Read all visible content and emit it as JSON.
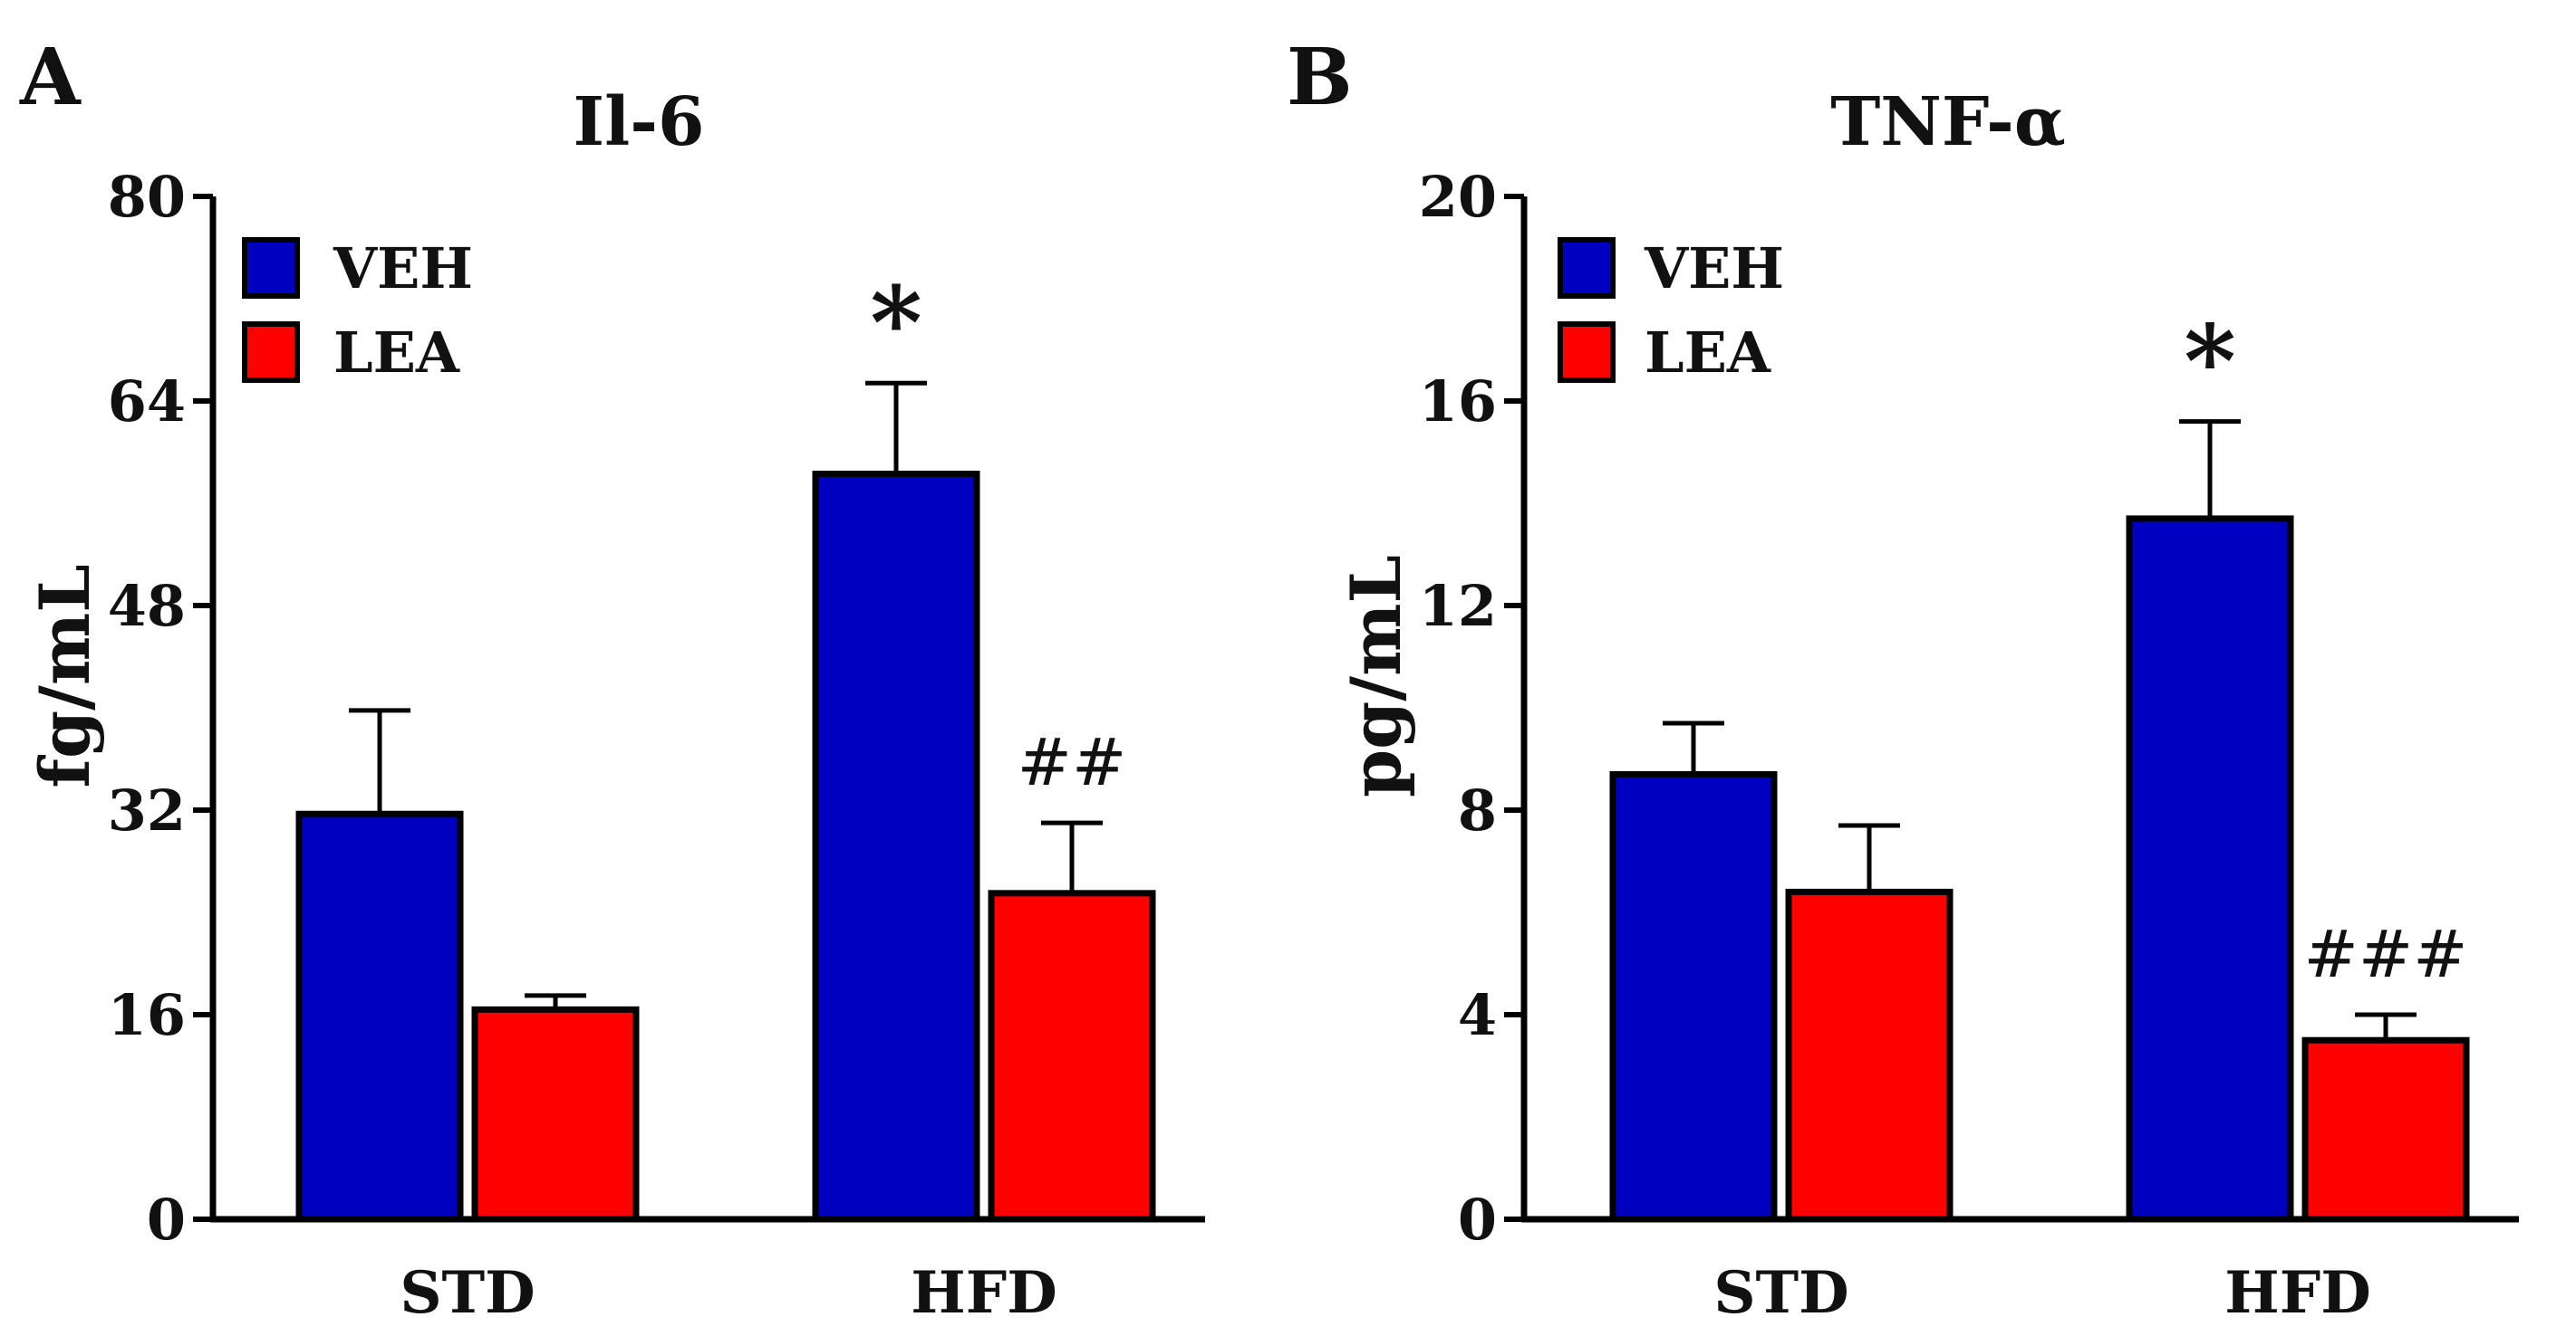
{
  "chart_data": [
    {
      "type": "bar",
      "panel": "A",
      "title": "Il-6",
      "xlabel": "",
      "ylabel": "fg/mL",
      "ylim": [
        0,
        80
      ],
      "yticks": [
        "0",
        "16",
        "32",
        "48",
        "64",
        "80"
      ],
      "categories": [
        "STD",
        "HFD"
      ],
      "series": [
        {
          "name": "VEH",
          "color": "#0000c0",
          "values": [
            31.7,
            58.3
          ],
          "errors": [
            8.1,
            7.1
          ]
        },
        {
          "name": "LEA",
          "color": "#ff0000",
          "values": [
            16.4,
            25.5
          ],
          "errors": [
            1.1,
            5.5
          ]
        }
      ],
      "annotations": [
        {
          "text": "*",
          "series": "VEH",
          "category": "HFD",
          "kind": "star"
        },
        {
          "text": "##",
          "series": "LEA",
          "category": "HFD",
          "kind": "hash"
        }
      ],
      "legend": "top-left"
    },
    {
      "type": "bar",
      "panel": "B",
      "title": "TNF-α",
      "xlabel": "",
      "ylabel": "pg/mL",
      "ylim": [
        0,
        20
      ],
      "yticks": [
        "0",
        "4",
        "8",
        "12",
        "16",
        "20"
      ],
      "categories": [
        "STD",
        "HFD"
      ],
      "series": [
        {
          "name": "VEH",
          "color": "#0000c0",
          "values": [
            8.7,
            13.7
          ],
          "errors": [
            1.0,
            1.9
          ]
        },
        {
          "name": "LEA",
          "color": "#ff0000",
          "values": [
            6.4,
            3.5
          ],
          "errors": [
            1.3,
            0.5
          ]
        }
      ],
      "annotations": [
        {
          "text": "*",
          "series": "VEH",
          "category": "HFD",
          "kind": "star"
        },
        {
          "text": "###",
          "series": "LEA",
          "category": "HFD",
          "kind": "hash"
        }
      ],
      "legend": "top-left"
    }
  ]
}
